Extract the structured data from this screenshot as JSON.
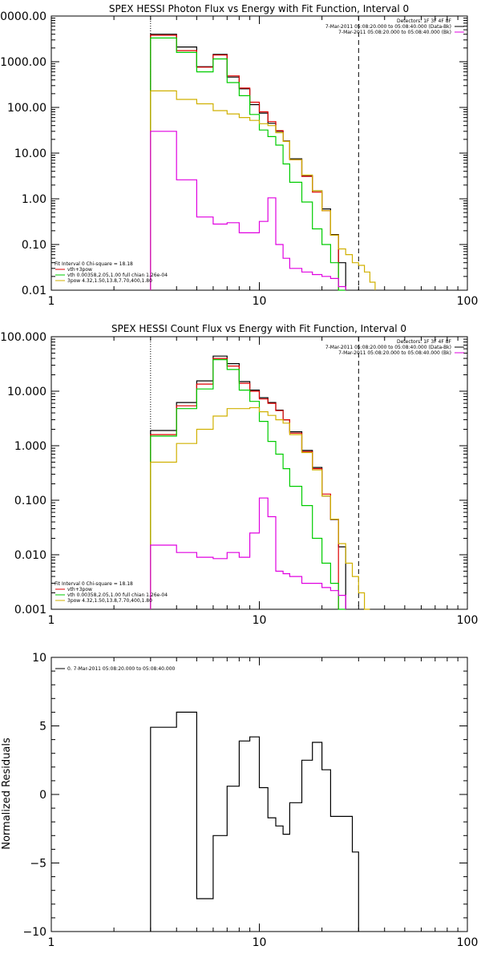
{
  "chart_data": [
    {
      "type": "line",
      "step": true,
      "title": "SPEX HESSI Photon Flux vs Energy with Fit Function, Interval 0",
      "xscale": "log",
      "yscale": "log",
      "xlim": [
        1,
        100
      ],
      "ylim": [
        0.01,
        10000
      ],
      "xticks": [
        "1",
        "10",
        "100"
      ],
      "yticks": [
        "10000.00",
        "1000.00",
        "100.00",
        "10.00",
        "1.00",
        "0.10",
        "0.01"
      ],
      "vlines": [
        {
          "x": 3,
          "style": "dotted"
        },
        {
          "x": 30,
          "style": "dashed"
        }
      ],
      "info": [
        {
          "text": "Detectors: 1F 3F 4F 8F",
          "color": "#000000"
        },
        {
          "text": "7-Mar-2011 05:08:20.000 to 05:08:40.000 (Data-Bk)",
          "color": "#000000"
        },
        {
          "text": "7-Mar-2011 05:08:20.000 to 05:08:40.000 (Bk)",
          "color": "#e000e0"
        }
      ],
      "legend_position": "bottom-left",
      "legend": [
        {
          "text": "Fit Interval 0   Chi-square = 18.18",
          "color": "#000000"
        },
        {
          "text": "vth+3pow",
          "color": "#e00000"
        },
        {
          "text": "vth 0.00358,2.05,1.00   full chian 1.26e-04",
          "color": "#00cc00"
        },
        {
          "text": "3pow 4.32,1.50,13.8,7.70,400,1.80",
          "color": "#d0b000"
        }
      ],
      "edges": [
        3,
        4,
        5,
        6,
        7,
        8,
        9,
        10,
        11,
        12,
        13,
        14,
        16,
        18,
        20,
        22,
        24,
        26,
        28,
        30,
        32,
        34,
        36,
        38,
        40
      ],
      "series": [
        {
          "color": "#000000",
          "values": [
            4000,
            2100,
            780,
            1450,
            460,
            255,
            115,
            75,
            45,
            30,
            18.5,
            7.5,
            3.2,
            1.5,
            0.6,
            0.165,
            0.04,
            null,
            null,
            null,
            null,
            null,
            null,
            null
          ]
        },
        {
          "color": "#e00000",
          "values": [
            3800,
            1750,
            760,
            1400,
            490,
            265,
            130,
            80,
            49,
            31,
            18,
            7.2,
            3.1,
            1.4,
            0.55,
            0.16,
            null,
            null,
            null,
            null,
            null,
            null,
            null,
            null
          ]
        },
        {
          "color": "#00cc00",
          "values": [
            3300,
            1600,
            600,
            1150,
            350,
            180,
            70,
            32,
            23,
            15,
            5.8,
            2.3,
            0.85,
            0.22,
            0.1,
            0.04,
            0.009,
            null,
            null,
            null,
            null,
            null,
            null,
            null
          ]
        },
        {
          "color": "#d0b000",
          "values": [
            230,
            150,
            120,
            85,
            72,
            60,
            52,
            44,
            40,
            28,
            18,
            7.2,
            3.3,
            1.5,
            0.55,
            0.16,
            0.08,
            0.06,
            0.04,
            0.035,
            0.025,
            0.015,
            null,
            null
          ]
        },
        {
          "color": "#e000e0",
          "values": [
            30,
            2.6,
            0.4,
            0.28,
            0.3,
            0.18,
            0.18,
            0.32,
            1.05,
            0.1,
            0.05,
            0.03,
            0.025,
            0.022,
            0.02,
            0.018,
            0.012,
            null,
            null,
            null,
            null,
            null,
            null,
            null
          ]
        }
      ]
    },
    {
      "type": "line",
      "step": true,
      "title": "SPEX HESSI Count Flux vs Energy with Fit Function, Interval 0",
      "xscale": "log",
      "yscale": "log",
      "xlim": [
        1,
        100
      ],
      "ylim": [
        0.001,
        100
      ],
      "xticks": [
        "1",
        "10",
        "100"
      ],
      "yticks": [
        "100.000",
        "10.000",
        "1.000",
        "0.100",
        "0.010",
        "0.001"
      ],
      "vlines": [
        {
          "x": 3,
          "style": "dotted"
        },
        {
          "x": 30,
          "style": "dashed"
        }
      ],
      "info": [
        {
          "text": "Detectors: 1F 3F 4F 8F",
          "color": "#000000"
        },
        {
          "text": "7-Mar-2011 05:08:20.000 to 05:08:40.000 (Data-Bk)",
          "color": "#000000"
        },
        {
          "text": "7-Mar-2011 05:08:20.000 to 05:08:40.000 (Bk)",
          "color": "#e000e0"
        }
      ],
      "legend_position": "bottom-left",
      "legend": [
        {
          "text": "Fit Interval 0   Chi-square = 18.18",
          "color": "#000000"
        },
        {
          "text": "vth+3pow",
          "color": "#e00000"
        },
        {
          "text": "vth 0.00358,2.05,1.00   full chian 1.26e-04",
          "color": "#00cc00"
        },
        {
          "text": "3pow 4.32,1.50,13.8,7.70,400,1.80",
          "color": "#d0b000"
        }
      ],
      "edges": [
        3,
        4,
        5,
        6,
        7,
        8,
        9,
        10,
        11,
        12,
        13,
        14,
        16,
        18,
        20,
        22,
        24,
        26,
        28,
        30,
        32,
        34,
        36,
        38,
        40
      ],
      "series": [
        {
          "color": "#000000",
          "values": [
            1.9,
            6.2,
            15.5,
            44,
            32,
            15,
            10.5,
            7.6,
            6.2,
            4.5,
            3,
            1.8,
            0.82,
            0.4,
            0.12,
            0.044,
            0.014,
            null,
            null,
            null,
            null,
            null,
            null,
            null
          ]
        },
        {
          "color": "#e00000",
          "values": [
            1.6,
            5.4,
            13.5,
            40,
            29,
            14,
            10,
            7.2,
            6,
            4.4,
            3,
            1.7,
            0.78,
            0.38,
            0.13,
            0.045,
            null,
            null,
            null,
            null,
            null,
            null,
            null,
            null
          ]
        },
        {
          "color": "#00cc00",
          "values": [
            1.5,
            4.8,
            11,
            38,
            25,
            10.5,
            6.5,
            2.8,
            1.2,
            0.7,
            0.38,
            0.18,
            0.08,
            0.02,
            0.007,
            0.003,
            0.001,
            null,
            null,
            null,
            null,
            null,
            null,
            null
          ]
        },
        {
          "color": "#d0b000",
          "values": [
            0.5,
            1.1,
            2,
            3.5,
            4.8,
            4.8,
            5,
            4.2,
            3.6,
            3,
            2.6,
            1.6,
            0.75,
            0.36,
            0.12,
            0.045,
            0.016,
            0.007,
            0.004,
            0.002,
            0.001,
            null,
            null,
            null
          ]
        },
        {
          "color": "#e000e0",
          "values": [
            0.015,
            0.011,
            0.009,
            0.0085,
            0.011,
            0.009,
            0.025,
            0.11,
            0.05,
            0.005,
            0.0045,
            0.004,
            0.003,
            0.003,
            0.0025,
            0.0022,
            0.0018,
            null,
            null,
            null,
            null,
            null,
            null,
            null
          ]
        }
      ]
    },
    {
      "type": "line",
      "step": true,
      "title": "",
      "xscale": "log",
      "yscale": "linear",
      "xlim": [
        1,
        100
      ],
      "ylim": [
        -10,
        10
      ],
      "xticks": [
        "1",
        "10",
        "100"
      ],
      "yticks": [
        "10",
        "5",
        "0",
        "-5",
        "-10"
      ],
      "ylabel": "Normalized Residuals",
      "legend_position": "top-left",
      "legend": [
        {
          "text": "0. 7-Mar-2011 05:08:20.000 to 05:08:40.000",
          "color": "#000000"
        }
      ],
      "edges": [
        3,
        4,
        5,
        6,
        7,
        8,
        9,
        10,
        11,
        12,
        13,
        14,
        16,
        18,
        20,
        22,
        24,
        26,
        28,
        30
      ],
      "series": [
        {
          "color": "#000000",
          "values": [
            4.9,
            6.0,
            -7.6,
            -3.0,
            0.6,
            3.9,
            4.2,
            0.5,
            -1.7,
            -2.3,
            -2.9,
            -0.6,
            2.5,
            3.8,
            1.8,
            -1.6,
            -1.6,
            -1.6,
            -4.2
          ]
        }
      ]
    }
  ]
}
